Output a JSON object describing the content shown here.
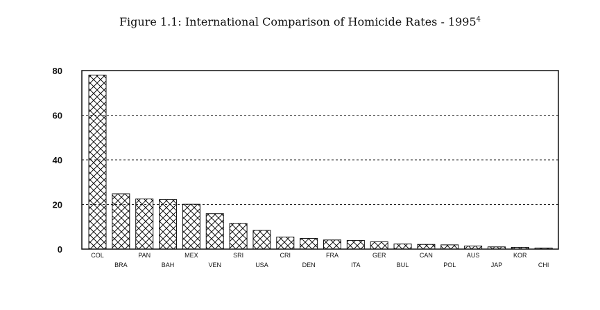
{
  "chart_data": {
    "type": "bar",
    "title": "Figure 1.1: International Comparison of Homicide Rates - 1995",
    "title_footnote": "4",
    "xlabel": "",
    "ylabel": "",
    "ylim": [
      0,
      80
    ],
    "yticks": [
      0,
      20,
      40,
      60,
      80
    ],
    "grid": "horizontal dashed",
    "categories": [
      "COL",
      "BRA",
      "PAN",
      "BAH",
      "MEX",
      "VEN",
      "SRI",
      "USA",
      "CRI",
      "DEN",
      "FRA",
      "ITA",
      "GER",
      "BUL",
      "CAN",
      "POL",
      "AUS",
      "JAP",
      "KOR",
      "CHI"
    ],
    "values": [
      78,
      24.8,
      22.5,
      22.2,
      20.1,
      15.9,
      11.5,
      8.4,
      5.4,
      4.8,
      4.1,
      3.9,
      3.3,
      2.3,
      2.1,
      1.9,
      1.4,
      1.0,
      0.8,
      0.5
    ],
    "pattern": "cross-hatch"
  }
}
